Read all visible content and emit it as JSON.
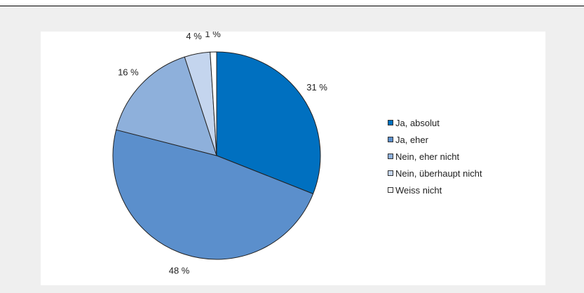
{
  "chart_data": {
    "type": "pie",
    "categories": [
      "Ja, absolut",
      "Ja, eher",
      "Nein, eher nicht",
      "Nein, überhaupt nicht",
      "Weiss nicht"
    ],
    "values": [
      31,
      48,
      16,
      4,
      1
    ],
    "value_labels": [
      "31 %",
      "48 %",
      "16 %",
      "4 %",
      "1 %"
    ],
    "colors": [
      "#0070c0",
      "#5b8fcc",
      "#8eb0db",
      "#c4d5ee",
      "#ffffff"
    ],
    "legend_position": "right",
    "start_angle": "12 o'clock",
    "direction": "clockwise"
  }
}
